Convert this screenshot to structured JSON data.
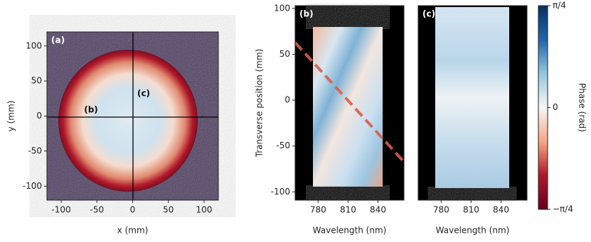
{
  "chart_data": [
    {
      "type": "heatmap",
      "panel_label": "(a)",
      "x_label": "x (mm)",
      "y_label": "y (mm)",
      "xlim": [
        -120,
        120
      ],
      "ylim": [
        -120,
        120
      ],
      "xticks": [
        -100,
        -50,
        0,
        50,
        100
      ],
      "yticks": [
        -100,
        -50,
        0,
        50,
        100
      ],
      "annotations": [
        "(b)",
        "(c)"
      ]
    },
    {
      "type": "heatmap",
      "panel_label": "(b)",
      "x_label": "Wavelength (nm)",
      "y_label": "Transverse position (mm)",
      "xlim": [
        757,
        866
      ],
      "ylim": [
        -109,
        103
      ],
      "xticks": [
        780,
        810,
        840
      ],
      "yticks": [
        -100,
        -50,
        0,
        50,
        100
      ]
    },
    {
      "type": "heatmap",
      "panel_label": "(c)",
      "x_label": "Wavelength (nm)",
      "xlim": [
        757,
        866
      ],
      "ylim": [
        -109,
        103
      ],
      "xticks": [
        780,
        810,
        840
      ]
    },
    {
      "type": "colorbar",
      "label": "Phase (rad)",
      "ylim": [
        -0.785,
        0.785
      ],
      "yticks": [
        {
          "value": -0.785,
          "label": "−π/4"
        },
        0,
        {
          "value": 0.785,
          "label": "π/4"
        }
      ]
    }
  ]
}
